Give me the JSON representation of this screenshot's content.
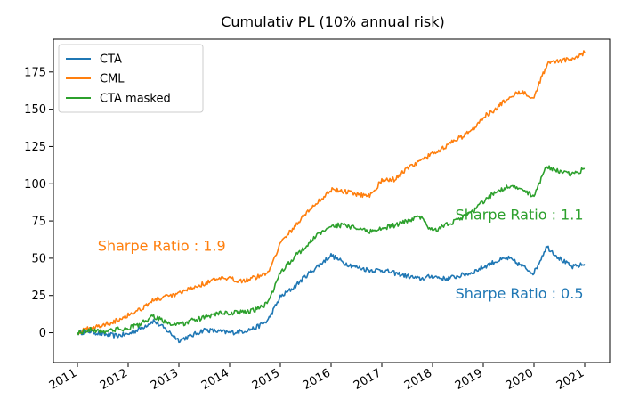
{
  "chart_data": {
    "type": "line",
    "title": "Cumulativ PL (10% annual risk)",
    "xlabel": "",
    "ylabel": "",
    "xlim": [
      2011.0,
      2021.0
    ],
    "ylim": [
      -20,
      197
    ],
    "x_ticks": [
      "2011",
      "2012",
      "2013",
      "2014",
      "2015",
      "2016",
      "2017",
      "2018",
      "2019",
      "2020",
      "2021"
    ],
    "y_ticks": [
      0,
      25,
      50,
      75,
      100,
      125,
      150,
      175
    ],
    "y_tick_labels": [
      "0",
      "25",
      "50",
      "75",
      "100",
      "125",
      "150",
      "175"
    ],
    "grid": false,
    "legend_position": "top-left",
    "series": [
      {
        "name": "CTA",
        "color": "#1f77b4",
        "x": [
          2011.0,
          2011.25,
          2011.5,
          2011.75,
          2012.0,
          2012.25,
          2012.5,
          2012.75,
          2013.0,
          2013.25,
          2013.5,
          2013.75,
          2014.0,
          2014.25,
          2014.5,
          2014.75,
          2015.0,
          2015.25,
          2015.5,
          2015.75,
          2016.0,
          2016.25,
          2016.5,
          2016.75,
          2017.0,
          2017.25,
          2017.5,
          2017.75,
          2018.0,
          2018.25,
          2018.5,
          2018.75,
          2019.0,
          2019.25,
          2019.5,
          2019.75,
          2020.0,
          2020.25,
          2020.5,
          2020.75,
          2021.0
        ],
        "y": [
          0,
          1,
          -1,
          -2,
          -1,
          3,
          8,
          2,
          -5,
          -2,
          2,
          1,
          0,
          1,
          3,
          8,
          24,
          30,
          38,
          45,
          52,
          47,
          44,
          42,
          42,
          40,
          38,
          36,
          38,
          36,
          38,
          40,
          44,
          48,
          50,
          45,
          40,
          58,
          50,
          44,
          46
        ]
      },
      {
        "name": "CML",
        "color": "#ff7f0e",
        "x": [
          2011.0,
          2011.25,
          2011.5,
          2011.75,
          2012.0,
          2012.25,
          2012.5,
          2012.75,
          2013.0,
          2013.25,
          2013.5,
          2013.75,
          2014.0,
          2014.25,
          2014.5,
          2014.75,
          2015.0,
          2015.25,
          2015.5,
          2015.75,
          2016.0,
          2016.25,
          2016.5,
          2016.75,
          2017.0,
          2017.25,
          2017.5,
          2017.75,
          2018.0,
          2018.25,
          2018.5,
          2018.75,
          2019.0,
          2019.25,
          2019.5,
          2019.75,
          2020.0,
          2020.25,
          2020.5,
          2020.75,
          2021.0
        ],
        "y": [
          0,
          3,
          5,
          8,
          12,
          16,
          22,
          24,
          26,
          30,
          33,
          36,
          36,
          35,
          37,
          40,
          60,
          70,
          80,
          88,
          96,
          95,
          93,
          92,
          102,
          103,
          110,
          115,
          120,
          125,
          130,
          135,
          145,
          150,
          158,
          162,
          158,
          180,
          182,
          184,
          188
        ]
      },
      {
        "name": "CTA masked",
        "color": "#2ca02c",
        "x": [
          2011.0,
          2011.25,
          2011.5,
          2011.75,
          2012.0,
          2012.25,
          2012.5,
          2012.75,
          2013.0,
          2013.25,
          2013.5,
          2013.75,
          2014.0,
          2014.25,
          2014.5,
          2014.75,
          2015.0,
          2015.25,
          2015.5,
          2015.75,
          2016.0,
          2016.25,
          2016.5,
          2016.75,
          2017.0,
          2017.25,
          2017.5,
          2017.75,
          2018.0,
          2018.25,
          2018.5,
          2018.75,
          2019.0,
          2019.25,
          2019.5,
          2019.75,
          2020.0,
          2020.25,
          2020.5,
          2020.75,
          2021.0
        ],
        "y": [
          0,
          2,
          1,
          2,
          3,
          6,
          11,
          7,
          5,
          8,
          10,
          13,
          13,
          14,
          15,
          20,
          40,
          50,
          58,
          66,
          72,
          72,
          70,
          68,
          70,
          72,
          75,
          78,
          68,
          72,
          76,
          80,
          88,
          95,
          98,
          96,
          92,
          112,
          108,
          106,
          110
        ]
      }
    ],
    "annotations": [
      {
        "text": "Sharpe Ratio : 1.9",
        "color": "#ff7f0e",
        "x": 2011.4,
        "y": 55
      },
      {
        "text": "Sharpe Ratio : 1.1",
        "color": "#2ca02c",
        "x": 2018.45,
        "y": 76
      },
      {
        "text": "Sharpe Ratio : 0.5",
        "color": "#1f77b4",
        "x": 2018.45,
        "y": 23
      }
    ]
  }
}
